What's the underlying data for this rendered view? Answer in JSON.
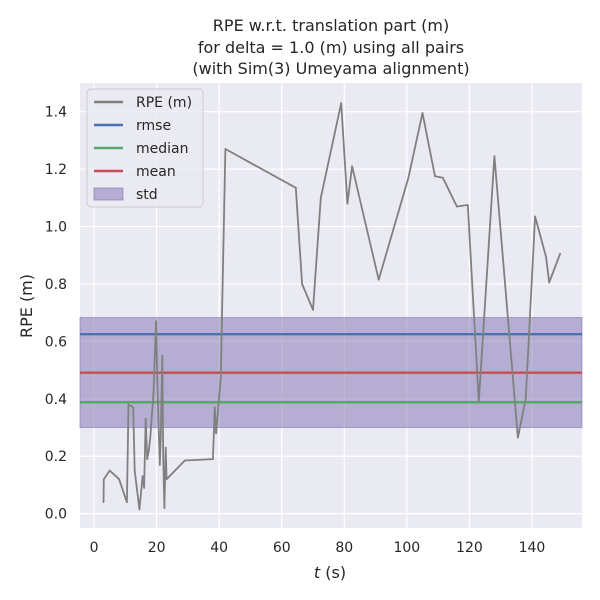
{
  "chart_data": {
    "type": "line",
    "title": [
      "RPE w.r.t. translation part (m)",
      "for delta = 1.0 (m) using all pairs",
      "(with Sim(3) Umeyama alignment)"
    ],
    "xlabel_italic": "t",
    "xlabel_rest": " (s)",
    "ylabel": "RPE (m)",
    "xlim": [
      -4.5,
      156
    ],
    "ylim": [
      -0.05,
      1.5
    ],
    "xticks": [
      0,
      20,
      40,
      60,
      80,
      100,
      120,
      140
    ],
    "xtick_labels": [
      "0",
      "20",
      "40",
      "60",
      "80",
      "100",
      "120",
      "140"
    ],
    "yticks": [
      0.0,
      0.2,
      0.4,
      0.6,
      0.8,
      1.0,
      1.2,
      1.4
    ],
    "ytick_labels": [
      "0.0",
      "0.2",
      "0.4",
      "0.6",
      "0.8",
      "1.0",
      "1.2",
      "1.4"
    ],
    "grid": true,
    "legend_position": "top-left",
    "legend": [
      {
        "label": "RPE (m)",
        "kind": "line",
        "color": "#808080"
      },
      {
        "label": "rmse",
        "kind": "line",
        "color": "#4c72b0"
      },
      {
        "label": "median",
        "kind": "line",
        "color": "#55a868"
      },
      {
        "label": "mean",
        "kind": "line",
        "color": "#c44e52"
      },
      {
        "label": "std",
        "kind": "patch",
        "color": "#8172b2"
      }
    ],
    "series": [
      {
        "name": "RPE (m)",
        "color": "#808080",
        "x": [
          3.0,
          3.1,
          5.0,
          8.0,
          10.5,
          11.0,
          12.5,
          13.0,
          14.5,
          15.5,
          16.0,
          16.5,
          17.0,
          17.5,
          18.0,
          19.0,
          19.8,
          20.2,
          21.0,
          21.3,
          21.8,
          22.1,
          22.5,
          22.9,
          23.2,
          29.0,
          38.0,
          38.6,
          39.0,
          40.5,
          42.0,
          64.5,
          66.5,
          70.0,
          72.5,
          79.0,
          81.0,
          82.5,
          91.0,
          100.5,
          105.0,
          109.0,
          111.5,
          116.0,
          119.5,
          123.0,
          128.0,
          135.5,
          138.0,
          141.0,
          144.5,
          145.5,
          149.0
        ],
        "y": [
          0.04,
          0.12,
          0.15,
          0.12,
          0.04,
          0.38,
          0.37,
          0.15,
          0.015,
          0.13,
          0.09,
          0.33,
          0.19,
          0.22,
          0.27,
          0.42,
          0.67,
          0.46,
          0.17,
          0.26,
          0.55,
          0.2,
          0.02,
          0.23,
          0.12,
          0.185,
          0.19,
          0.37,
          0.28,
          0.47,
          1.27,
          1.135,
          0.8,
          0.71,
          1.1,
          1.43,
          1.08,
          1.21,
          0.815,
          1.17,
          1.395,
          1.175,
          1.17,
          1.07,
          1.075,
          0.39,
          1.245,
          0.265,
          0.4,
          1.035,
          0.895,
          0.805,
          0.905
        ]
      }
    ],
    "stats": {
      "rmse": 0.625,
      "median": 0.388,
      "mean": 0.491,
      "std_low": 0.3,
      "std_high": 0.683
    }
  }
}
